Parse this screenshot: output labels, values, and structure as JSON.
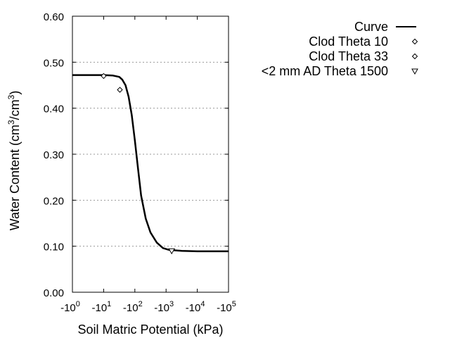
{
  "chart_data": {
    "type": "line",
    "title": "",
    "xlabel": "Soil Matric Potential (kPa)",
    "ylabel": "Water Content (cm3/cm3)",
    "x_scale": "log (negative)",
    "xlim": [
      -1,
      -100000
    ],
    "ylim": [
      0.0,
      0.6
    ],
    "grid": "horizontal dotted",
    "legend_position": "top-right, outside plot",
    "x_ticks": [
      {
        "base": "-10",
        "exp": "0"
      },
      {
        "base": "-10",
        "exp": "1"
      },
      {
        "base": "-10",
        "exp": "2"
      },
      {
        "base": "-10",
        "exp": "3"
      },
      {
        "base": "-10",
        "exp": "4"
      },
      {
        "base": "-10",
        "exp": "5"
      }
    ],
    "y_ticks": [
      "0.00",
      "0.10",
      "0.20",
      "0.30",
      "0.40",
      "0.50",
      "0.60"
    ],
    "series": [
      {
        "name": "Curve",
        "style": "line",
        "points": [
          [
            0,
            0.472
          ],
          [
            1.0,
            0.472
          ],
          [
            1.3,
            0.471
          ],
          [
            1.5,
            0.468
          ],
          [
            1.6,
            0.462
          ],
          [
            1.7,
            0.45
          ],
          [
            1.8,
            0.425
          ],
          [
            1.9,
            0.385
          ],
          [
            2.0,
            0.33
          ],
          [
            2.1,
            0.27
          ],
          [
            2.2,
            0.21
          ],
          [
            2.35,
            0.16
          ],
          [
            2.5,
            0.13
          ],
          [
            2.7,
            0.108
          ],
          [
            2.9,
            0.096
          ],
          [
            3.1,
            0.092
          ],
          [
            3.5,
            0.09
          ],
          [
            4.0,
            0.089
          ],
          [
            5.0,
            0.089
          ]
        ]
      },
      {
        "name": "Clod Theta 10",
        "style": "diamond",
        "points": [
          [
            1.0,
            0.47
          ]
        ]
      },
      {
        "name": "Clod Theta 33",
        "style": "diamond",
        "points": [
          [
            1.52,
            0.44
          ]
        ]
      },
      {
        "name": "<2 mm AD Theta 1500",
        "style": "triangle-down",
        "points": [
          [
            3.18,
            0.09
          ]
        ]
      }
    ]
  },
  "axes": {
    "xlabel": "Soil Matric Potential (kPa)",
    "ylabel_main": "Water Content (cm",
    "ylabel_sup1": "3",
    "ylabel_mid": "/cm",
    "ylabel_sup2": "3",
    "ylabel_end": ")"
  },
  "legend": [
    {
      "label": "Curve"
    },
    {
      "label": "Clod Theta 10"
    },
    {
      "label": "Clod Theta 33"
    },
    {
      "label": "<2 mm AD Theta 1500"
    }
  ]
}
